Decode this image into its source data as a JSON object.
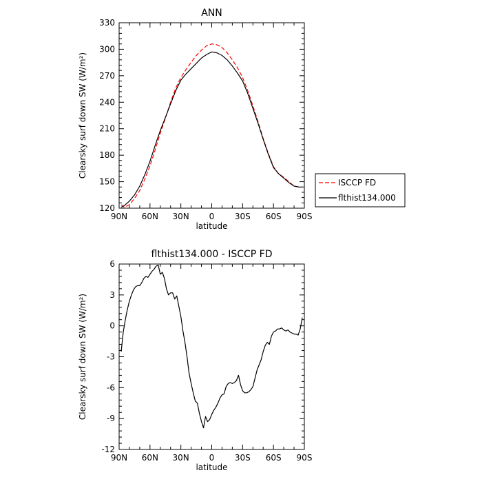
{
  "chart_data": [
    {
      "type": "line",
      "title": "ANN",
      "xlabel": "latitude",
      "ylabel": "Clearsky surf down SW (W/m²)",
      "xlim": [
        90,
        -90
      ],
      "ylim": [
        120,
        330
      ],
      "xticks": [
        {
          "value": 90,
          "label": "90N"
        },
        {
          "value": 60,
          "label": "60N"
        },
        {
          "value": 30,
          "label": "30N"
        },
        {
          "value": 0,
          "label": "0"
        },
        {
          "value": -30,
          "label": "30S"
        },
        {
          "value": -60,
          "label": "60S"
        },
        {
          "value": -90,
          "label": "90S"
        }
      ],
      "yticks": [
        120,
        150,
        180,
        210,
        240,
        270,
        300,
        330
      ],
      "grid": false,
      "legend_position": "right, outside plot",
      "series": [
        {
          "name": "ISCCP FD",
          "color": "#ff0000",
          "dash": "dashed",
          "x": [
            88,
            85,
            80,
            75,
            70,
            65,
            60,
            55,
            50,
            45,
            40,
            35,
            30,
            25,
            20,
            15,
            10,
            5,
            0,
            -5,
            -10,
            -15,
            -20,
            -25,
            -30,
            -35,
            -40,
            -45,
            -50,
            -55,
            -60,
            -65,
            -70,
            -75,
            -80,
            -85,
            -88
          ],
          "y": [
            124,
            121,
            124,
            131,
            140,
            153,
            168,
            186,
            205,
            222,
            240,
            256,
            268,
            277,
            285,
            293,
            299,
            304,
            306,
            305,
            302,
            296,
            288,
            279,
            268,
            253,
            236,
            218,
            199,
            182,
            167,
            159,
            155,
            150,
            145,
            144,
            144
          ]
        },
        {
          "name": "flthist134.000",
          "color": "#000000",
          "dash": "solid",
          "x": [
            88,
            85,
            80,
            75,
            70,
            65,
            60,
            55,
            50,
            45,
            40,
            35,
            30,
            25,
            20,
            15,
            10,
            5,
            0,
            -5,
            -10,
            -15,
            -20,
            -25,
            -30,
            -35,
            -40,
            -45,
            -50,
            -55,
            -60,
            -65,
            -70,
            -75,
            -80,
            -85,
            -88
          ],
          "y": [
            121,
            123,
            128,
            135,
            145,
            158,
            173,
            191,
            208,
            223,
            238,
            253,
            265,
            272,
            278,
            284,
            290,
            294,
            297,
            296,
            293,
            288,
            281,
            273,
            264,
            250,
            233,
            216,
            198,
            181,
            166,
            159,
            154,
            149,
            145,
            144,
            144
          ]
        }
      ]
    },
    {
      "type": "line",
      "title": "flthist134.000 - ISCCP FD",
      "xlabel": "latitude",
      "ylabel": "Clearsky surf down SW (W/m²)",
      "xlim": [
        90,
        -90
      ],
      "ylim": [
        -12,
        6
      ],
      "xticks": [
        {
          "value": 90,
          "label": "90N"
        },
        {
          "value": 60,
          "label": "60N"
        },
        {
          "value": 30,
          "label": "30N"
        },
        {
          "value": 0,
          "label": "0"
        },
        {
          "value": -30,
          "label": "30S"
        },
        {
          "value": -60,
          "label": "60S"
        },
        {
          "value": -90,
          "label": "90S"
        }
      ],
      "yticks": [
        -12,
        -9,
        -6,
        -3,
        0,
        3,
        6
      ],
      "grid": false,
      "series": [
        {
          "color": "#000000",
          "dash": "solid",
          "x": [
            88,
            86,
            84,
            82,
            80,
            78,
            76,
            74,
            72,
            70,
            68,
            66,
            64,
            62,
            60,
            58,
            56,
            54,
            52,
            50,
            48,
            46,
            44,
            42,
            40,
            38,
            36,
            34,
            32,
            30,
            28,
            26,
            24,
            22,
            20,
            18,
            16,
            14,
            12,
            10,
            8,
            6,
            4,
            2,
            0,
            -2,
            -4,
            -6,
            -8,
            -10,
            -12,
            -14,
            -16,
            -18,
            -20,
            -22,
            -24,
            -26,
            -28,
            -30,
            -32,
            -34,
            -36,
            -38,
            -40,
            -42,
            -44,
            -46,
            -48,
            -50,
            -52,
            -54,
            -56,
            -58,
            -60,
            -62,
            -64,
            -66,
            -68,
            -70,
            -72,
            -74,
            -76,
            -78,
            -80,
            -82,
            -84,
            -86,
            -88
          ],
          "y": [
            -2.5,
            -0.6,
            0.6,
            1.6,
            2.4,
            3.0,
            3.5,
            3.8,
            3.9,
            3.9,
            4.2,
            4.6,
            4.8,
            4.7,
            5.0,
            5.3,
            5.5,
            5.8,
            5.9,
            5.0,
            5.2,
            4.6,
            3.6,
            3.0,
            3.2,
            3.2,
            2.6,
            2.9,
            1.9,
            0.9,
            -0.5,
            -1.6,
            -3.0,
            -4.6,
            -5.6,
            -6.5,
            -7.3,
            -7.5,
            -8.5,
            -9.3,
            -9.9,
            -8.8,
            -9.3,
            -9.1,
            -8.6,
            -8.2,
            -7.9,
            -7.5,
            -7.0,
            -6.7,
            -6.6,
            -5.9,
            -5.6,
            -5.5,
            -5.6,
            -5.5,
            -5.3,
            -4.8,
            -5.7,
            -6.3,
            -6.5,
            -6.5,
            -6.4,
            -6.2,
            -5.9,
            -5.1,
            -4.3,
            -3.8,
            -3.3,
            -2.5,
            -1.9,
            -1.6,
            -1.8,
            -1.0,
            -0.6,
            -0.5,
            -0.3,
            -0.3,
            -0.2,
            -0.4,
            -0.5,
            -0.4,
            -0.6,
            -0.7,
            -0.8,
            -0.8,
            -0.9,
            -0.3,
            0.8
          ]
        }
      ]
    }
  ]
}
